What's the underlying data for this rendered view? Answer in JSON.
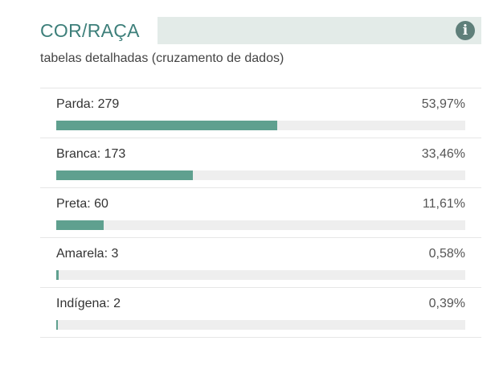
{
  "widget": {
    "title": "COR/RAÇA",
    "subtitle": "tabelas detalhadas (cruzamento de dados)",
    "info_icon": "info-circle-icon",
    "colors": {
      "title": "#3d7f7a",
      "band": "#e3ebe8",
      "bar": "#5fa08f",
      "track": "#eeeeee"
    }
  },
  "items": [
    {
      "label": "Parda: 279",
      "percent": "53,97%",
      "fraction": 0.5397
    },
    {
      "label": "Branca: 173",
      "percent": "33,46%",
      "fraction": 0.3346
    },
    {
      "label": "Preta: 60",
      "percent": "11,61%",
      "fraction": 0.1161
    },
    {
      "label": "Amarela: 3",
      "percent": "0,58%",
      "fraction": 0.0058
    },
    {
      "label": "Indígena: 2",
      "percent": "0,39%",
      "fraction": 0.0039
    }
  ]
}
